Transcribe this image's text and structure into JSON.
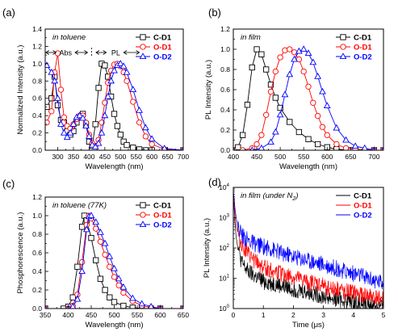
{
  "chart_data": [
    {
      "panel_label": "(a)",
      "type": "line",
      "annotation": "in toluene",
      "region_labels": [
        "Abs",
        "PL"
      ],
      "xlabel": "Wavelength (nm)",
      "ylabel": "Normalized Intensity (a.u.)",
      "xlim": [
        260,
        700
      ],
      "ylim": [
        0,
        1.4
      ],
      "xticks": [
        300,
        350,
        400,
        450,
        500,
        550,
        600,
        650,
        700
      ],
      "yticks": [
        0.0,
        0.2,
        0.4,
        0.6,
        0.8,
        1.0,
        1.2,
        1.4
      ],
      "xtick_labels": [
        "300",
        "350",
        "400",
        "450",
        "500",
        "550",
        "600",
        "650",
        "700"
      ],
      "ytick_labels": [
        "0.0",
        "0.2",
        "0.4",
        "0.6",
        "0.8",
        "1.0",
        "1.2",
        "1.4"
      ],
      "legend": "top-right",
      "series": [
        {
          "name": "C-D1",
          "color": "#000000",
          "marker": "square",
          "x": [
            265,
            280,
            290,
            300,
            310,
            320,
            330,
            340,
            350,
            360,
            370,
            380,
            390,
            400,
            410,
            420,
            430,
            440,
            450,
            460,
            470,
            480,
            490,
            500,
            510,
            520,
            540,
            560,
            580,
            600,
            640,
            700
          ],
          "y": [
            0.5,
            0.6,
            0.85,
            0.52,
            0.35,
            0.32,
            0.22,
            0.18,
            0.22,
            0.32,
            0.38,
            0.42,
            0.3,
            0.1,
            0.05,
            0.3,
            0.72,
            1.0,
            0.98,
            0.85,
            0.62,
            0.42,
            0.28,
            0.18,
            0.1,
            0.06,
            0.03,
            0.01,
            0.0,
            0.0,
            0.0,
            0.0
          ]
        },
        {
          "name": "O-D1",
          "color": "#ff0000",
          "marker": "circle",
          "x": [
            265,
            280,
            290,
            300,
            310,
            320,
            330,
            340,
            350,
            360,
            370,
            380,
            390,
            400,
            410,
            420,
            430,
            440,
            450,
            460,
            470,
            480,
            490,
            500,
            510,
            520,
            540,
            560,
            580,
            600,
            640,
            700
          ],
          "y": [
            0.32,
            0.45,
            0.9,
            1.12,
            0.7,
            0.38,
            0.28,
            0.25,
            0.3,
            0.36,
            0.4,
            0.4,
            0.32,
            0.18,
            0.08,
            0.05,
            0.12,
            0.32,
            0.55,
            0.78,
            0.92,
            0.99,
            1.0,
            0.97,
            0.9,
            0.8,
            0.56,
            0.32,
            0.16,
            0.07,
            0.01,
            0.0
          ]
        },
        {
          "name": "O-D2",
          "color": "#0000ff",
          "marker": "triangle",
          "x": [
            265,
            280,
            290,
            300,
            310,
            320,
            330,
            340,
            350,
            360,
            370,
            380,
            390,
            400,
            410,
            420,
            430,
            440,
            450,
            460,
            470,
            480,
            490,
            500,
            510,
            520,
            540,
            560,
            580,
            600,
            640,
            700
          ],
          "y": [
            0.98,
            0.9,
            0.8,
            0.6,
            0.3,
            0.2,
            0.15,
            0.2,
            0.3,
            0.38,
            0.4,
            0.37,
            0.28,
            0.16,
            0.06,
            0.04,
            0.08,
            0.2,
            0.4,
            0.62,
            0.8,
            0.92,
            0.98,
            1.0,
            0.97,
            0.9,
            0.7,
            0.46,
            0.26,
            0.13,
            0.02,
            0.0
          ]
        }
      ]
    },
    {
      "panel_label": "(b)",
      "type": "line",
      "annotation": "in film",
      "xlabel": "Wavelength (nm)",
      "ylabel": "PL Intensity (a.u.)",
      "xlim": [
        400,
        720
      ],
      "ylim": [
        0,
        1.2
      ],
      "xticks": [
        400,
        450,
        500,
        550,
        600,
        650,
        700
      ],
      "yticks": [
        0.0,
        0.2,
        0.4,
        0.6,
        0.8,
        1.0,
        1.2
      ],
      "xtick_labels": [
        "400",
        "450",
        "500",
        "550",
        "600",
        "650",
        "700"
      ],
      "ytick_labels": [
        "0.0",
        "0.2",
        "0.4",
        "0.6",
        "0.8",
        "1.0",
        "1.2"
      ],
      "legend": "top-right",
      "series": [
        {
          "name": "C-D1",
          "color": "#000000",
          "marker": "square",
          "x": [
            400,
            410,
            420,
            430,
            440,
            450,
            460,
            470,
            480,
            490,
            500,
            520,
            540,
            560,
            580,
            600,
            620,
            650,
            700,
            720
          ],
          "y": [
            0.0,
            0.03,
            0.15,
            0.45,
            0.82,
            1.0,
            0.95,
            0.8,
            0.65,
            0.52,
            0.42,
            0.28,
            0.18,
            0.11,
            0.06,
            0.03,
            0.01,
            0.0,
            0.0,
            0.0
          ]
        },
        {
          "name": "O-D1",
          "color": "#ff0000",
          "marker": "circle",
          "x": [
            400,
            420,
            440,
            450,
            460,
            470,
            480,
            490,
            500,
            510,
            520,
            530,
            540,
            550,
            560,
            570,
            580,
            590,
            600,
            620,
            640,
            660,
            700,
            720
          ],
          "y": [
            0.0,
            0.0,
            0.02,
            0.06,
            0.15,
            0.35,
            0.58,
            0.78,
            0.92,
            0.99,
            1.0,
            0.97,
            0.9,
            0.78,
            0.63,
            0.47,
            0.34,
            0.23,
            0.15,
            0.06,
            0.02,
            0.01,
            0.0,
            0.0
          ]
        },
        {
          "name": "O-D2",
          "color": "#0000ff",
          "marker": "triangle",
          "x": [
            400,
            440,
            460,
            480,
            490,
            500,
            510,
            520,
            530,
            540,
            550,
            560,
            570,
            580,
            590,
            600,
            620,
            640,
            660,
            680,
            700,
            720
          ],
          "y": [
            0.0,
            0.0,
            0.02,
            0.08,
            0.18,
            0.35,
            0.55,
            0.75,
            0.9,
            0.98,
            1.0,
            0.96,
            0.87,
            0.73,
            0.58,
            0.44,
            0.22,
            0.1,
            0.04,
            0.02,
            0.0,
            0.0
          ]
        }
      ]
    },
    {
      "panel_label": "(c)",
      "type": "line",
      "annotation": "in toluene (77K)",
      "xlabel": "Wavelength (nm)",
      "ylabel": "Phosphorescence (a.u.)",
      "xlim": [
        350,
        650
      ],
      "ylim": [
        0,
        1.2
      ],
      "xticks": [
        350,
        400,
        450,
        500,
        550,
        600,
        650
      ],
      "yticks": [
        0.0,
        0.2,
        0.4,
        0.6,
        0.8,
        1.0,
        1.2
      ],
      "xtick_labels": [
        "350",
        "400",
        "450",
        "500",
        "550",
        "600",
        "650"
      ],
      "ytick_labels": [
        "0.0",
        "0.2",
        "0.4",
        "0.6",
        "0.8",
        "1.0",
        "1.2"
      ],
      "legend": "top-right",
      "series": [
        {
          "name": "C-D1",
          "color": "#000000",
          "marker": "square",
          "x": [
            350,
            390,
            400,
            410,
            420,
            430,
            435,
            440,
            450,
            460,
            470,
            480,
            490,
            500,
            520,
            540,
            560,
            580,
            600,
            650
          ],
          "y": [
            0.0,
            0.0,
            0.02,
            0.12,
            0.45,
            0.88,
            1.0,
            0.95,
            0.76,
            0.52,
            0.32,
            0.2,
            0.12,
            0.07,
            0.03,
            0.01,
            0.0,
            0.0,
            0.0,
            0.0
          ]
        },
        {
          "name": "O-D1",
          "color": "#ff0000",
          "marker": "circle",
          "x": [
            350,
            400,
            410,
            420,
            430,
            440,
            445,
            450,
            460,
            470,
            480,
            490,
            500,
            510,
            520,
            540,
            560,
            580,
            600,
            650
          ],
          "y": [
            0.0,
            0.0,
            0.03,
            0.15,
            0.5,
            0.9,
            1.0,
            0.97,
            0.86,
            0.72,
            0.58,
            0.45,
            0.34,
            0.25,
            0.17,
            0.08,
            0.03,
            0.01,
            0.0,
            0.0
          ]
        },
        {
          "name": "O-D2",
          "color": "#0000ff",
          "marker": "triangle",
          "x": [
            350,
            400,
            410,
            420,
            430,
            440,
            445,
            450,
            460,
            470,
            480,
            490,
            500,
            510,
            520,
            540,
            560,
            580,
            600,
            650
          ],
          "y": [
            0.0,
            0.0,
            0.02,
            0.1,
            0.4,
            0.85,
            0.99,
            1.0,
            0.93,
            0.82,
            0.7,
            0.56,
            0.43,
            0.32,
            0.23,
            0.11,
            0.05,
            0.02,
            0.0,
            0.0
          ]
        }
      ]
    },
    {
      "panel_label": "(d)",
      "type": "line",
      "annotation": "in film (under N2)",
      "xlabel": "Time (μs)",
      "ylabel": "PL Intensity (a.u.)",
      "xlim": [
        0,
        5
      ],
      "ylim": [
        1,
        10000
      ],
      "log_y": true,
      "xticks": [
        0,
        1,
        2,
        3,
        4,
        5
      ],
      "xtick_labels": [
        "0",
        "1",
        "2",
        "3",
        "4",
        "5"
      ],
      "ytick_labels": [
        "10^0",
        "10^1",
        "10^2",
        "10^3",
        "10^4"
      ],
      "legend": "top-right",
      "series": [
        {
          "name": "C-D1",
          "color": "#000000",
          "x": [
            0.0,
            0.02,
            0.05,
            0.1,
            0.2,
            0.3,
            0.5,
            0.75,
            1.0,
            1.5,
            2.0,
            2.5,
            3.0,
            3.5,
            4.0,
            4.5,
            5.0
          ],
          "y": [
            8000,
            3000,
            800,
            200,
            60,
            30,
            16,
            11,
            8,
            6,
            4.5,
            3.5,
            2.5,
            2,
            1.6,
            1.3,
            1.1
          ]
        },
        {
          "name": "O-D1",
          "color": "#ff0000",
          "x": [
            0.0,
            0.02,
            0.05,
            0.1,
            0.2,
            0.3,
            0.5,
            0.75,
            1.0,
            1.5,
            2.0,
            2.5,
            3.0,
            3.5,
            4.0,
            4.5,
            5.0
          ],
          "y": [
            8000,
            4000,
            1500,
            500,
            200,
            120,
            60,
            35,
            24,
            15,
            10,
            7.5,
            5.5,
            4.2,
            3.2,
            2.5,
            2.0
          ]
        },
        {
          "name": "O-D2",
          "color": "#0000ff",
          "x": [
            0.0,
            0.02,
            0.05,
            0.1,
            0.2,
            0.3,
            0.5,
            0.75,
            1.0,
            1.5,
            2.0,
            2.5,
            3.0,
            3.5,
            4.0,
            4.5,
            5.0
          ],
          "y": [
            8000,
            5000,
            2500,
            900,
            400,
            250,
            170,
            130,
            110,
            75,
            52,
            38,
            28,
            20,
            14,
            10,
            7
          ]
        }
      ]
    }
  ]
}
